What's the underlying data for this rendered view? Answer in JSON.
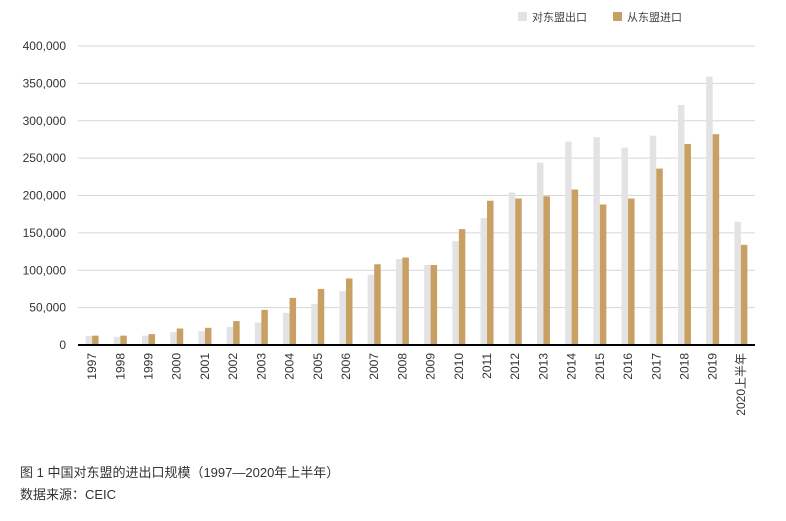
{
  "chart_data": {
    "type": "bar",
    "categories": [
      "1997",
      "1998",
      "1999",
      "2000",
      "2001",
      "2002",
      "2003",
      "2004",
      "2005",
      "2006",
      "2007",
      "2008",
      "2009",
      "2010",
      "2011",
      "2012",
      "2013",
      "2014",
      "2015",
      "2016",
      "2017",
      "2018",
      "2019",
      "2020上半年"
    ],
    "series": [
      {
        "name": "对东盟出口",
        "color": "#e3e3e3",
        "values": [
          12000,
          11000,
          12500,
          17500,
          18500,
          24000,
          30000,
          43000,
          55000,
          72000,
          94000,
          115000,
          107000,
          139000,
          170000,
          204000,
          244000,
          272000,
          278000,
          264000,
          280000,
          321000,
          359000,
          165000
        ]
      },
      {
        "name": "从东盟进口",
        "color": "#c8a063",
        "values": [
          12500,
          12500,
          14500,
          22000,
          23000,
          32000,
          47000,
          63000,
          75000,
          89000,
          108000,
          117000,
          107000,
          155000,
          193000,
          196000,
          199000,
          208000,
          188000,
          196000,
          236000,
          269000,
          282000,
          134000
        ]
      }
    ],
    "ylim": [
      0,
      400000
    ],
    "yticks": [
      0,
      50000,
      100000,
      150000,
      200000,
      250000,
      300000,
      350000,
      400000
    ],
    "ytick_labels": [
      "0",
      "50,000",
      "100,000",
      "150,000",
      "200,000",
      "250,000",
      "300,000",
      "350,000",
      "400,000"
    ],
    "legend_position": "top-right",
    "grid": true
  },
  "caption": {
    "title": "图 1  中国对东盟的进出口规模（1997—2020年上半年）",
    "source": "数据来源：CEIC"
  }
}
